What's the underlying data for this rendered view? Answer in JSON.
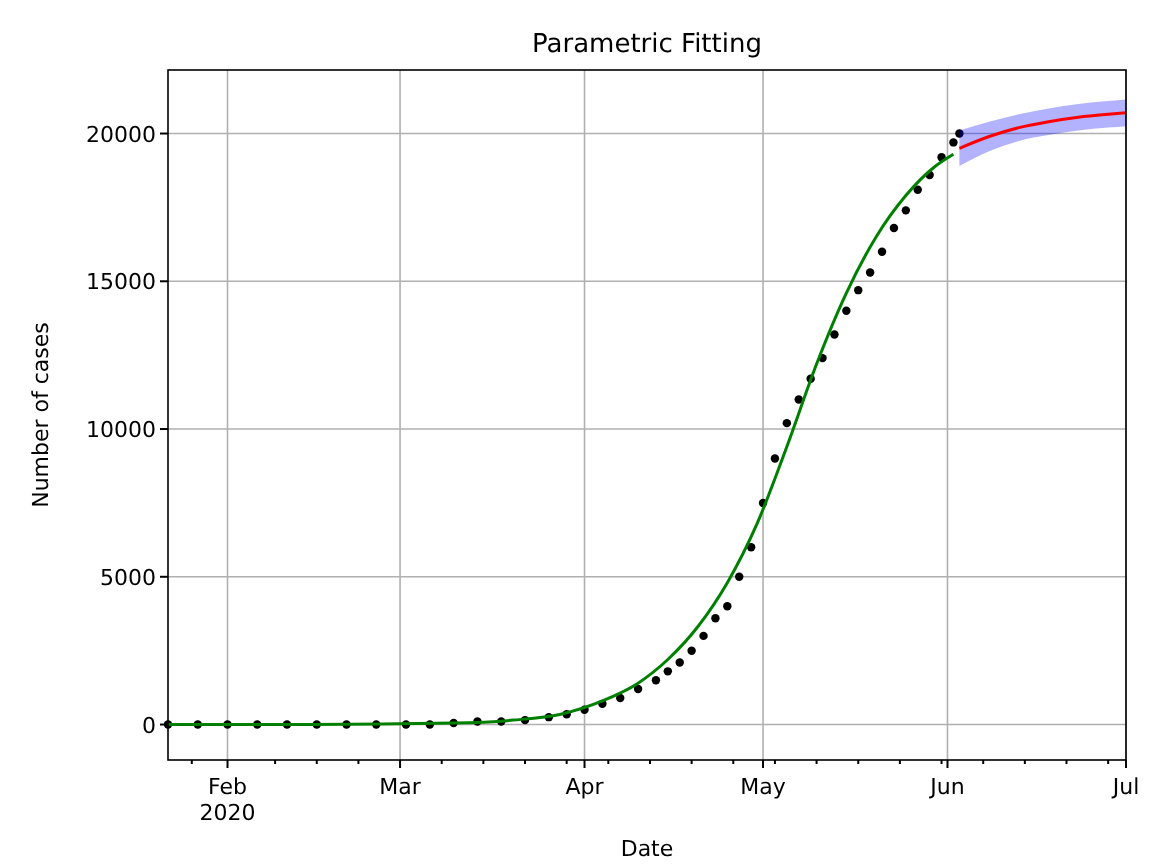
{
  "chart_data": {
    "type": "line",
    "title": "Parametric Fitting",
    "xlabel": "Date",
    "ylabel": "Number of cases",
    "grid": true,
    "xlim": [
      "2020-01-22",
      "2020-07-01"
    ],
    "xticks": [
      {
        "value": "2020-02-01",
        "label": "Feb\n2020"
      },
      {
        "value": "2020-03-01",
        "label": "Mar"
      },
      {
        "value": "2020-04-01",
        "label": "Apr"
      },
      {
        "value": "2020-05-01",
        "label": "May"
      },
      {
        "value": "2020-06-01",
        "label": "Jun"
      },
      {
        "value": "2020-07-01",
        "label": "Jul"
      },
      {
        "value": "2020-01-26",
        "label": null
      },
      {
        "value": "2020-02-09",
        "label": null
      },
      {
        "value": "2020-02-16",
        "label": null
      },
      {
        "value": "2020-02-23",
        "label": null
      },
      {
        "value": "2020-03-08",
        "label": null
      },
      {
        "value": "2020-03-15",
        "label": null
      },
      {
        "value": "2020-03-22",
        "label": null
      },
      {
        "value": "2020-03-29",
        "label": null
      },
      {
        "value": "2020-04-05",
        "label": null
      },
      {
        "value": "2020-04-12",
        "label": null
      },
      {
        "value": "2020-04-19",
        "label": null
      },
      {
        "value": "2020-04-26",
        "label": null
      },
      {
        "value": "2020-05-03",
        "label": null
      },
      {
        "value": "2020-05-10",
        "label": null
      },
      {
        "value": "2020-05-17",
        "label": null
      },
      {
        "value": "2020-05-24",
        "label": null
      },
      {
        "value": "2020-05-31",
        "label": null
      },
      {
        "value": "2020-06-07",
        "label": null
      },
      {
        "value": "2020-06-14",
        "label": null
      },
      {
        "value": "2020-06-21",
        "label": null
      },
      {
        "value": "2020-06-28",
        "label": null
      }
    ],
    "ylim": [
      -1200,
      22150
    ],
    "yticks": [
      0,
      5000,
      10000,
      15000,
      20000
    ],
    "series": [
      {
        "type": "scatter",
        "marker": "circle",
        "color": "#000000",
        "x": [
          "2020-01-22",
          "2020-01-27",
          "2020-02-01",
          "2020-02-06",
          "2020-02-11",
          "2020-02-16",
          "2020-02-21",
          "2020-02-26",
          "2020-03-02",
          "2020-03-06",
          "2020-03-10",
          "2020-03-14",
          "2020-03-18",
          "2020-03-22",
          "2020-03-26",
          "2020-03-29",
          "2020-04-01",
          "2020-04-04",
          "2020-04-07",
          "2020-04-10",
          "2020-04-13",
          "2020-04-15",
          "2020-04-17",
          "2020-04-19",
          "2020-04-21",
          "2020-04-23",
          "2020-04-25",
          "2020-04-27",
          "2020-04-29",
          "2020-05-01",
          "2020-05-03",
          "2020-05-05",
          "2020-05-07",
          "2020-05-09",
          "2020-05-11",
          "2020-05-13",
          "2020-05-15",
          "2020-05-17",
          "2020-05-19",
          "2020-05-21",
          "2020-05-23",
          "2020-05-25",
          "2020-05-27",
          "2020-05-29",
          "2020-05-31",
          "2020-06-02",
          "2020-06-03"
        ],
        "values": [
          0,
          0,
          0,
          0,
          0,
          0,
          0,
          0,
          0,
          0,
          50,
          100,
          100,
          150,
          250,
          350,
          500,
          700,
          900,
          1200,
          1500,
          1800,
          2100,
          2500,
          3000,
          3600,
          4000,
          5000,
          6000,
          7500,
          9000,
          10200,
          11000,
          11700,
          12400,
          13200,
          14000,
          14700,
          15300,
          16000,
          16800,
          17400,
          18100,
          18600,
          19200,
          19700,
          20000
        ]
      },
      {
        "color": "#008000",
        "x": [
          "2020-01-22",
          "2020-02-15",
          "2020-03-10",
          "2020-03-20",
          "2020-03-28",
          "2020-04-04",
          "2020-04-10",
          "2020-04-15",
          "2020-04-20",
          "2020-04-25",
          "2020-04-30",
          "2020-05-05",
          "2020-05-10",
          "2020-05-15",
          "2020-05-20",
          "2020-05-25",
          "2020-05-30",
          "2020-06-02"
        ],
        "values": [
          0,
          0,
          50,
          150,
          350,
          800,
          1400,
          2200,
          3300,
          4800,
          6800,
          9400,
          12200,
          14600,
          16500,
          17900,
          18900,
          19300
        ]
      },
      {
        "color": "#ff0000",
        "x": [
          "2020-06-03",
          "2020-06-08",
          "2020-06-13",
          "2020-06-18",
          "2020-06-23",
          "2020-06-28",
          "2020-07-01"
        ],
        "values": [
          19500,
          19900,
          20200,
          20400,
          20550,
          20650,
          20700
        ],
        "lower": [
          18900,
          19400,
          19750,
          19950,
          20100,
          20200,
          20250
        ],
        "upper": [
          20100,
          20400,
          20650,
          20850,
          21000,
          21100,
          21150
        ]
      }
    ]
  }
}
